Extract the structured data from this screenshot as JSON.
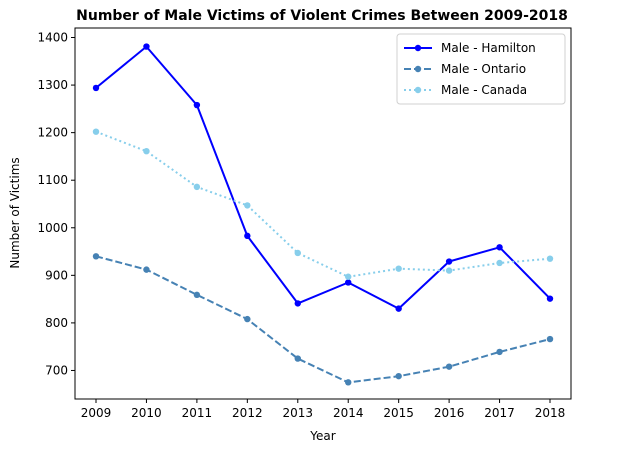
{
  "chart_data": {
    "type": "line",
    "title": "Number of Male Victims of Violent Crimes Between 2009-2018",
    "xlabel": "Year",
    "ylabel": "Number of Victims",
    "x": [
      2009,
      2010,
      2011,
      2012,
      2013,
      2014,
      2015,
      2016,
      2017,
      2018
    ],
    "ylim": [
      640,
      1420
    ],
    "yticks": [
      700,
      800,
      900,
      1000,
      1100,
      1200,
      1300,
      1400
    ],
    "grid": false,
    "legend_position": "top-right",
    "series": [
      {
        "name": "Male - Hamilton",
        "color": "#0000ff",
        "line_style": "solid",
        "values": [
          1294,
          1381,
          1258,
          983,
          841,
          885,
          830,
          929,
          959,
          851
        ]
      },
      {
        "name": "Male - Ontario",
        "color": "#4682b4",
        "line_style": "dashed",
        "values": [
          940,
          912,
          859,
          808,
          725,
          675,
          688,
          708,
          739,
          766
        ]
      },
      {
        "name": "Male - Canada",
        "color": "#87ceeb",
        "line_style": "dotted",
        "values": [
          1202,
          1161,
          1086,
          1047,
          947,
          897,
          914,
          910,
          926,
          935
        ]
      }
    ]
  }
}
